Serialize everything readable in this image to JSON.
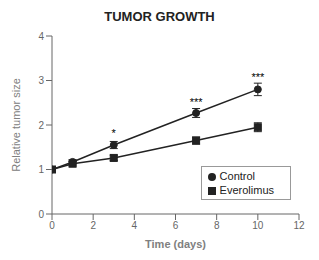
{
  "chart_data": {
    "type": "line",
    "title": "TUMOR GROWTH",
    "xlabel": "Time (days)",
    "ylabel": "Relative tumor size",
    "xlim": [
      0,
      12
    ],
    "ylim": [
      0,
      4
    ],
    "xticks": [
      0,
      2,
      4,
      6,
      8,
      10,
      12
    ],
    "yticks": [
      0,
      1,
      2,
      3,
      4
    ],
    "x": [
      0,
      1,
      3,
      7,
      10
    ],
    "series": [
      {
        "name": "Control",
        "color": "#222222",
        "marker": "circle",
        "values": [
          1.0,
          1.17,
          1.55,
          2.27,
          2.8
        ],
        "errors": [
          0.0,
          0.05,
          0.08,
          0.1,
          0.14
        ]
      },
      {
        "name": "Everolimus",
        "color": "#222222",
        "marker": "square",
        "values": [
          1.0,
          1.13,
          1.26,
          1.65,
          1.95
        ],
        "errors": [
          0.0,
          0.05,
          0.06,
          0.08,
          0.1
        ]
      }
    ],
    "annotations": [
      {
        "x": 3,
        "y": 1.72,
        "text": "*"
      },
      {
        "x": 7,
        "y": 2.42,
        "text": "***"
      },
      {
        "x": 10,
        "y": 2.98,
        "text": "***"
      }
    ],
    "legend": "lower right",
    "grid": false
  }
}
